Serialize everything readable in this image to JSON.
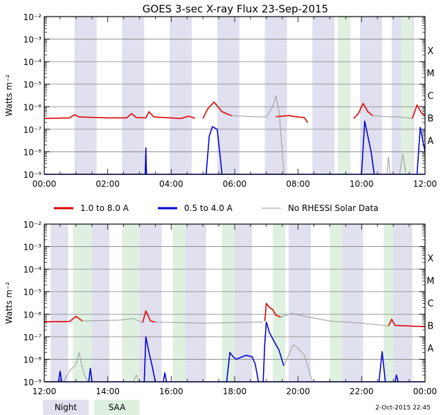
{
  "title": "GOES 3-sec X-ray Flux   23-Sep-2015",
  "ylabel": "Watts m⁻²",
  "ytick_labels": [
    "10⁻²",
    "10⁻³",
    "10⁻⁴",
    "10⁻⁵",
    "10⁻⁶",
    "10⁻⁷",
    "10⁻⁸",
    "10⁻⁹"
  ],
  "class_labels": [
    "X",
    "M",
    "C",
    "B",
    "A"
  ],
  "legend": {
    "red": "1.0 to 8.0 A",
    "blue": "0.5 to 4.0 A",
    "gray": "No RHESSI Solar Data"
  },
  "footer": {
    "night_label": "Night",
    "saa_label": "SAA",
    "timestamp": "2-Oct-2015 22:45"
  },
  "colors": {
    "night": "#e0e0ef",
    "saa": "#e0f0e0",
    "long_channel": "#dd0000",
    "short_channel": "#0000dd",
    "no_rhessi": "#999999",
    "grid": "#808080"
  },
  "chart_data": [
    {
      "type": "line",
      "title": "GOES 3-sec X-ray Flux   23-Sep-2015",
      "ylabel": "Watts m-2",
      "yscale": "log",
      "ylim": [
        1e-09,
        0.01
      ],
      "xlim_hours": [
        0,
        12
      ],
      "x_tick_labels": [
        "00:00",
        "02:00",
        "04:00",
        "06:00",
        "08:00",
        "10:00",
        "12:00"
      ],
      "night_intervals": [
        [
          0.95,
          1.65
        ],
        [
          2.45,
          3.15
        ],
        [
          3.95,
          4.65
        ],
        [
          5.45,
          6.15
        ],
        [
          6.95,
          7.65
        ],
        [
          8.45,
          9.15
        ],
        [
          9.95,
          10.65
        ],
        [
          10.95,
          11.65
        ]
      ],
      "saa_intervals": [
        [
          9.25,
          9.65
        ],
        [
          11.25,
          11.6
        ]
      ],
      "series": [
        {
          "name": "1.0 to 8.0 A",
          "color": "red",
          "segments": [
            [
              [
                0,
                3e-07
              ],
              [
                0.8,
                3.2e-07
              ],
              [
                0.95,
                4.4e-07
              ],
              [
                1.1,
                3.5e-07
              ],
              [
                2.0,
                3.2e-07
              ],
              [
                2.6,
                3.2e-07
              ],
              [
                2.75,
                5e-07
              ],
              [
                2.9,
                3.3e-07
              ],
              [
                3.2,
                3.2e-07
              ],
              [
                3.3,
                6e-07
              ],
              [
                3.45,
                3.5e-07
              ],
              [
                4.3,
                3e-07
              ],
              [
                4.55,
                3.8e-07
              ],
              [
                4.75,
                3.1e-07
              ]
            ],
            [
              [
                5.0,
                3e-07
              ],
              [
                5.15,
                8e-07
              ],
              [
                5.35,
                1.6e-06
              ],
              [
                5.6,
                6e-07
              ],
              [
                5.9,
                4e-07
              ]
            ],
            [
              [
                7.3,
                3.6e-07
              ],
              [
                7.7,
                4e-07
              ],
              [
                8.0,
                3.5e-07
              ],
              [
                8.2,
                3.3e-07
              ],
              [
                8.3,
                2e-07
              ]
            ],
            [
              [
                9.75,
                3e-07
              ],
              [
                9.9,
                5e-07
              ],
              [
                10.05,
                1.4e-06
              ],
              [
                10.2,
                6e-07
              ],
              [
                10.35,
                4e-07
              ]
            ],
            [
              [
                11.6,
                3e-07
              ],
              [
                11.75,
                1.2e-06
              ],
              [
                11.9,
                5e-07
              ],
              [
                12.0,
                4.2e-07
              ]
            ]
          ]
        },
        {
          "name": "0.5 to 4.0 A",
          "color": "blue",
          "segments": [
            [
              [
                0,
                1e-09
              ],
              [
                12,
                1e-09
              ]
            ],
            [
              [
                3.18,
                1e-09
              ],
              [
                3.2,
                1.5e-08
              ],
              [
                3.22,
                1e-09
              ]
            ],
            [
              [
                5.1,
                1e-09
              ],
              [
                5.2,
                5e-08
              ],
              [
                5.3,
                1.3e-07
              ],
              [
                5.45,
                1e-07
              ],
              [
                5.55,
                5e-09
              ],
              [
                5.6,
                1e-09
              ]
            ],
            [
              [
                10.0,
                1e-09
              ],
              [
                10.1,
                2.3e-07
              ],
              [
                10.3,
                1e-08
              ],
              [
                10.4,
                1e-09
              ]
            ],
            [
              [
                11.75,
                1e-09
              ],
              [
                11.85,
                1.2e-07
              ],
              [
                12.0,
                1e-08
              ]
            ]
          ]
        },
        {
          "name": "No RHESSI Solar Data",
          "color": "gray",
          "segments": [
            [
              [
                5.9,
                4e-07
              ],
              [
                6.8,
                3.5e-07
              ],
              [
                7.0,
                3.5e-07
              ],
              [
                7.2,
                1e-06
              ],
              [
                7.3,
                3e-06
              ],
              [
                7.4,
                6e-07
              ],
              [
                7.5,
                1e-08
              ],
              [
                7.55,
                1e-09
              ]
            ],
            [
              [
                10.35,
                4e-07
              ],
              [
                10.8,
                3.6e-07
              ],
              [
                11.2,
                3.5e-07
              ],
              [
                11.6,
                3e-07
              ]
            ],
            [
              [
                10.8,
                1e-09
              ],
              [
                10.85,
                6e-09
              ],
              [
                10.9,
                1e-09
              ]
            ],
            [
              [
                11.2,
                1e-09
              ],
              [
                11.3,
                8e-09
              ],
              [
                11.4,
                1e-09
              ]
            ]
          ]
        }
      ]
    },
    {
      "type": "line",
      "title": "",
      "ylabel": "Watts m-2",
      "yscale": "log",
      "ylim": [
        1e-09,
        0.01
      ],
      "xlim_hours": [
        12,
        24
      ],
      "x_tick_labels": [
        "12:00",
        "14:00",
        "16:00",
        "18:00",
        "20:00",
        "22:00",
        "00:00"
      ],
      "night_intervals": [
        [
          12.2,
          12.75
        ],
        [
          13.45,
          14.05
        ],
        [
          15.0,
          15.7
        ],
        [
          16.4,
          17.1
        ],
        [
          17.9,
          18.55
        ],
        [
          19.7,
          20.4
        ],
        [
          21.35,
          22.05
        ],
        [
          22.95,
          23.6
        ]
      ],
      "saa_intervals": [
        [
          12.9,
          13.5
        ],
        [
          14.45,
          15.0
        ],
        [
          16.05,
          16.45
        ],
        [
          17.6,
          18.0
        ],
        [
          19.2,
          19.6
        ],
        [
          21.0,
          21.4
        ],
        [
          22.7,
          23.0
        ]
      ],
      "series": [
        {
          "name": "1.0 to 8.0 A",
          "color": "red",
          "segments": [
            [
              [
                12.0,
                4.6e-07
              ],
              [
                12.8,
                4.8e-07
              ],
              [
                13.0,
                8e-07
              ],
              [
                13.2,
                5e-07
              ]
            ],
            [
              [
                15.1,
                4.2e-07
              ],
              [
                15.2,
                1.4e-06
              ],
              [
                15.35,
                5e-07
              ],
              [
                15.5,
                4.5e-07
              ]
            ],
            [
              [
                18.95,
                5e-07
              ],
              [
                19.0,
                3e-06
              ],
              [
                19.1,
                2e-06
              ],
              [
                19.2,
                1.6e-06
              ],
              [
                19.3,
                9e-07
              ],
              [
                19.45,
                7.5e-07
              ]
            ],
            [
              [
                22.85,
                3e-07
              ],
              [
                22.95,
                6e-07
              ],
              [
                23.05,
                3.2e-07
              ],
              [
                24.0,
                2.8e-07
              ]
            ]
          ]
        },
        {
          "name": "0.5 to 4.0 A",
          "color": "blue",
          "segments": [
            [
              [
                12.0,
                1e-09
              ],
              [
                24.0,
                1e-09
              ]
            ],
            [
              [
                12.45,
                1e-09
              ],
              [
                12.5,
                3e-09
              ],
              [
                12.55,
                1e-09
              ]
            ],
            [
              [
                13.4,
                1e-09
              ],
              [
                13.45,
                4e-09
              ],
              [
                13.5,
                1e-09
              ]
            ],
            [
              [
                15.15,
                1e-09
              ],
              [
                15.2,
                1e-07
              ],
              [
                15.3,
                2e-08
              ],
              [
                15.4,
                5e-09
              ],
              [
                15.5,
                1e-09
              ]
            ],
            [
              [
                15.75,
                1e-09
              ],
              [
                15.8,
                2.5e-09
              ],
              [
                15.85,
                1e-09
              ]
            ],
            [
              [
                17.75,
                1e-09
              ],
              [
                17.85,
                2e-08
              ],
              [
                17.95,
                1.3e-08
              ],
              [
                18.05,
                1e-08
              ],
              [
                18.35,
                1.5e-08
              ],
              [
                18.55,
                1.3e-08
              ],
              [
                18.65,
                6e-09
              ],
              [
                18.75,
                1e-09
              ]
            ],
            [
              [
                18.9,
                1e-09
              ],
              [
                18.95,
                5e-08
              ],
              [
                19.0,
                4.5e-07
              ],
              [
                19.1,
                1.5e-07
              ],
              [
                19.25,
                6e-08
              ],
              [
                19.4,
                2.5e-08
              ],
              [
                19.55,
                5e-09
              ]
            ],
            [
              [
                22.55,
                1e-09
              ],
              [
                22.65,
                2.2e-08
              ],
              [
                22.75,
                1e-09
              ]
            ],
            [
              [
                23.05,
                1e-09
              ],
              [
                23.1,
                2e-09
              ],
              [
                23.15,
                1e-09
              ]
            ]
          ]
        },
        {
          "name": "No RHESSI Solar Data",
          "color": "gray",
          "segments": [
            [
              [
                13.2,
                5e-07
              ],
              [
                14.4,
                5.5e-07
              ],
              [
                14.8,
                6.5e-07
              ],
              [
                15.1,
                4.2e-07
              ]
            ],
            [
              [
                15.5,
                4.5e-07
              ],
              [
                17.0,
                4e-07
              ],
              [
                18.9,
                4.5e-07
              ]
            ],
            [
              [
                19.45,
                7.5e-07
              ],
              [
                19.8,
                1.1e-06
              ],
              [
                20.2,
                8e-07
              ],
              [
                21.0,
                5e-07
              ],
              [
                22.0,
                4e-07
              ],
              [
                22.85,
                3e-07
              ]
            ],
            [
              [
                12.6,
                1e-09
              ],
              [
                12.8,
                3e-09
              ],
              [
                13.0,
                6e-09
              ],
              [
                13.1,
                2e-08
              ],
              [
                13.2,
                4e-09
              ],
              [
                13.3,
                1.5e-09
              ],
              [
                13.4,
                1e-09
              ]
            ],
            [
              [
                14.8,
                1e-09
              ],
              [
                14.9,
                2e-09
              ],
              [
                15.0,
                1e-09
              ]
            ],
            [
              [
                19.55,
                5e-09
              ],
              [
                19.7,
                1.5e-08
              ],
              [
                19.85,
                4.5e-08
              ],
              [
                20.0,
                3e-08
              ],
              [
                20.2,
                1.5e-08
              ],
              [
                20.35,
                3e-09
              ],
              [
                20.45,
                1e-09
              ]
            ]
          ]
        }
      ]
    }
  ]
}
